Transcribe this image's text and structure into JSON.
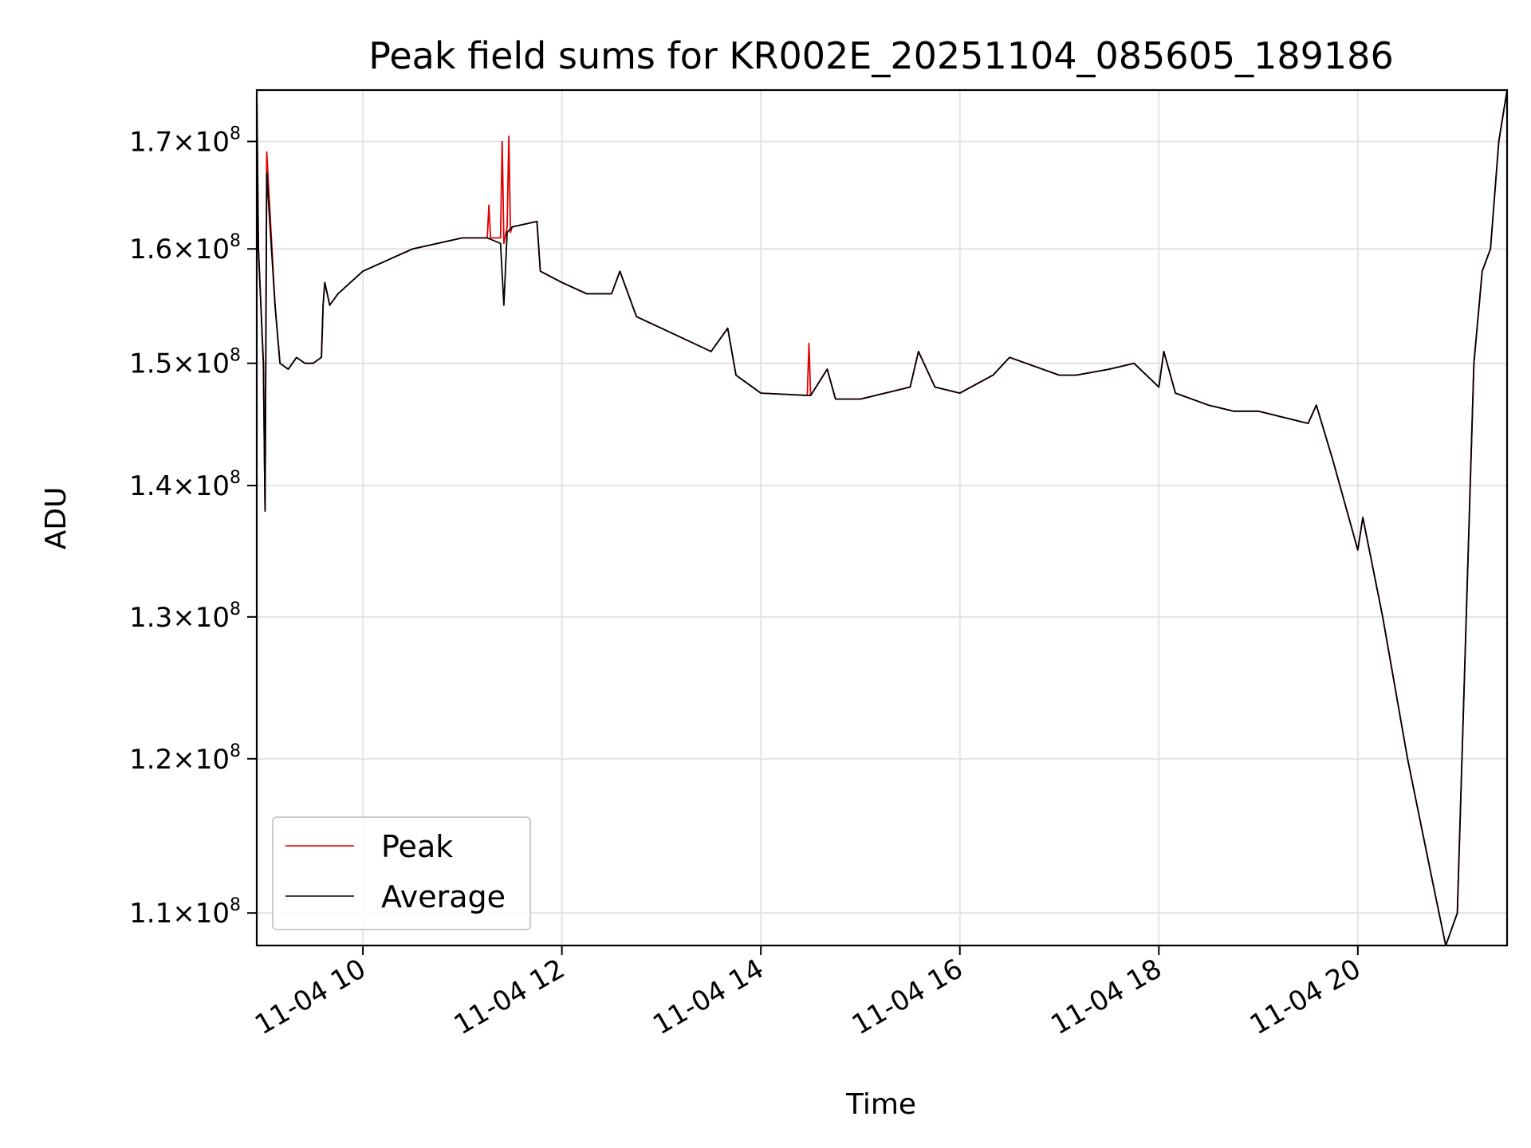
{
  "chart_data": {
    "type": "line",
    "title": "Peak field sums for KR002E_20251104_085605_189186",
    "xlabel": "Time",
    "ylabel": "ADU",
    "yscale": "log",
    "grid": true,
    "legend_position": "lower-left",
    "xlim": [
      "2025-11-04 08:56",
      "2025-11-04 21:30"
    ],
    "ylim": [
      108000000,
      175000000
    ],
    "x_ticks": [
      {
        "value": "2025-11-04 10:00",
        "label": "11-04 10"
      },
      {
        "value": "2025-11-04 12:00",
        "label": "11-04 12"
      },
      {
        "value": "2025-11-04 14:00",
        "label": "11-04 14"
      },
      {
        "value": "2025-11-04 16:00",
        "label": "11-04 16"
      },
      {
        "value": "2025-11-04 18:00",
        "label": "11-04 18"
      },
      {
        "value": "2025-11-04 20:00",
        "label": "11-04 20"
      }
    ],
    "y_ticks": [
      {
        "value": 110000000,
        "mantissa": "1.1",
        "exp": "8"
      },
      {
        "value": 120000000,
        "mantissa": "1.2",
        "exp": "8"
      },
      {
        "value": 130000000,
        "mantissa": "1.3",
        "exp": "8"
      },
      {
        "value": 140000000,
        "mantissa": "1.4",
        "exp": "8"
      },
      {
        "value": 150000000,
        "mantissa": "1.5",
        "exp": "8"
      },
      {
        "value": 160000000,
        "mantissa": "1.6",
        "exp": "8"
      },
      {
        "value": 170000000,
        "mantissa": "1.7",
        "exp": "8"
      }
    ],
    "series": [
      {
        "name": "Average",
        "color": "#000000",
        "x": [
          "2025-11-04 08:56",
          "2025-11-04 08:57",
          "2025-11-04 09:00",
          "2025-11-04 09:01",
          "2025-11-04 09:02",
          "2025-11-04 09:07",
          "2025-11-04 09:10",
          "2025-11-04 09:15",
          "2025-11-04 09:20",
          "2025-11-04 09:25",
          "2025-11-04 09:30",
          "2025-11-04 09:35",
          "2025-11-04 09:36",
          "2025-11-04 09:37",
          "2025-11-04 09:40",
          "2025-11-04 09:45",
          "2025-11-04 10:00",
          "2025-11-04 10:15",
          "2025-11-04 10:30",
          "2025-11-04 11:00",
          "2025-11-04 11:15",
          "2025-11-04 11:23",
          "2025-11-04 11:25",
          "2025-11-04 11:27",
          "2025-11-04 11:30",
          "2025-11-04 11:45",
          "2025-11-04 11:47",
          "2025-11-04 12:00",
          "2025-11-04 12:15",
          "2025-11-04 12:30",
          "2025-11-04 12:35",
          "2025-11-04 12:45",
          "2025-11-04 13:00",
          "2025-11-04 13:30",
          "2025-11-04 13:40",
          "2025-11-04 13:45",
          "2025-11-04 14:00",
          "2025-11-04 14:30",
          "2025-11-04 14:40",
          "2025-11-04 14:45",
          "2025-11-04 15:00",
          "2025-11-04 15:30",
          "2025-11-04 15:35",
          "2025-11-04 15:45",
          "2025-11-04 16:00",
          "2025-11-04 16:20",
          "2025-11-04 16:30",
          "2025-11-04 17:00",
          "2025-11-04 17:10",
          "2025-11-04 17:30",
          "2025-11-04 17:45",
          "2025-11-04 18:00",
          "2025-11-04 18:03",
          "2025-11-04 18:10",
          "2025-11-04 18:30",
          "2025-11-04 18:45",
          "2025-11-04 19:00",
          "2025-11-04 19:30",
          "2025-11-04 19:35",
          "2025-11-04 19:45",
          "2025-11-04 20:00",
          "2025-11-04 20:03",
          "2025-11-04 20:15",
          "2025-11-04 20:30",
          "2025-11-04 20:45",
          "2025-11-04 20:53",
          "2025-11-04 21:00",
          "2025-11-04 21:10",
          "2025-11-04 21:15",
          "2025-11-04 21:20",
          "2025-11-04 21:25",
          "2025-11-04 21:30"
        ],
        "values": [
          175000000,
          160000000,
          150000000,
          138000000,
          167000000,
          155000000,
          150000000,
          149500000,
          150500000,
          150000000,
          150000000,
          150500000,
          155000000,
          157000000,
          155000000,
          156000000,
          158000000,
          159000000,
          160000000,
          161000000,
          161000000,
          160500000,
          155000000,
          161500000,
          162000000,
          162500000,
          158000000,
          157000000,
          156000000,
          156000000,
          158000000,
          154000000,
          153000000,
          151000000,
          153000000,
          149000000,
          147500000,
          147300000,
          149500000,
          147000000,
          147000000,
          148000000,
          151000000,
          148000000,
          147500000,
          149000000,
          150500000,
          149000000,
          149000000,
          149500000,
          150000000,
          148000000,
          151000000,
          147500000,
          146500000,
          146000000,
          146000000,
          145000000,
          146500000,
          142000000,
          135000000,
          137500000,
          130000000,
          120000000,
          112000000,
          108000000,
          110000000,
          150000000,
          158000000,
          160000000,
          170000000,
          175000000
        ]
      },
      {
        "name": "Peak",
        "color": "#e00000",
        "x": [
          "2025-11-04 08:56",
          "2025-11-04 08:57",
          "2025-11-04 09:00",
          "2025-11-04 09:01",
          "2025-11-04 09:02",
          "2025-11-04 09:07",
          "2025-11-04 09:10",
          "2025-11-04 09:15",
          "2025-11-04 09:20",
          "2025-11-04 09:25",
          "2025-11-04 09:30",
          "2025-11-04 09:35",
          "2025-11-04 09:36",
          "2025-11-04 09:37",
          "2025-11-04 09:40",
          "2025-11-04 09:45",
          "2025-11-04 10:00",
          "2025-11-04 10:15",
          "2025-11-04 10:30",
          "2025-11-04 11:00",
          "2025-11-04 11:15",
          "2025-11-04 11:16",
          "2025-11-04 11:17",
          "2025-11-04 11:23",
          "2025-11-04 11:24",
          "2025-11-04 11:25",
          "2025-11-04 11:27",
          "2025-11-04 11:28",
          "2025-11-04 11:29",
          "2025-11-04 11:30",
          "2025-11-04 11:45",
          "2025-11-04 11:47",
          "2025-11-04 12:00",
          "2025-11-04 12:15",
          "2025-11-04 12:30",
          "2025-11-04 12:35",
          "2025-11-04 12:45",
          "2025-11-04 13:00",
          "2025-11-04 13:30",
          "2025-11-04 13:40",
          "2025-11-04 13:45",
          "2025-11-04 14:00",
          "2025-11-04 14:28",
          "2025-11-04 14:29",
          "2025-11-04 14:30",
          "2025-11-04 14:40",
          "2025-11-04 14:45",
          "2025-11-04 15:00",
          "2025-11-04 15:30",
          "2025-11-04 15:35",
          "2025-11-04 15:45",
          "2025-11-04 16:00",
          "2025-11-04 16:20",
          "2025-11-04 16:30",
          "2025-11-04 17:00",
          "2025-11-04 17:10",
          "2025-11-04 17:30",
          "2025-11-04 17:45",
          "2025-11-04 18:00",
          "2025-11-04 18:03",
          "2025-11-04 18:10",
          "2025-11-04 18:30",
          "2025-11-04 18:45",
          "2025-11-04 19:00",
          "2025-11-04 19:30",
          "2025-11-04 19:35",
          "2025-11-04 19:45",
          "2025-11-04 20:00",
          "2025-11-04 20:03",
          "2025-11-04 20:15",
          "2025-11-04 20:30",
          "2025-11-04 20:45",
          "2025-11-04 20:53",
          "2025-11-04 21:00",
          "2025-11-04 21:10",
          "2025-11-04 21:15",
          "2025-11-04 21:20",
          "2025-11-04 21:25",
          "2025-11-04 21:30"
        ],
        "values": [
          175000000,
          160000000,
          150000000,
          138000000,
          169000000,
          155000000,
          150000000,
          149500000,
          150500000,
          150000000,
          150000000,
          150500000,
          155000000,
          157000000,
          155000000,
          156000000,
          158000000,
          159000000,
          160000000,
          161000000,
          161000000,
          164000000,
          161000000,
          161000000,
          170000000,
          160500000,
          162000000,
          170500000,
          161500000,
          162000000,
          162500000,
          158000000,
          157000000,
          156000000,
          156000000,
          158000000,
          154000000,
          153000000,
          151000000,
          153000000,
          149000000,
          147500000,
          147300000,
          151700000,
          147300000,
          149500000,
          147000000,
          147000000,
          148000000,
          151000000,
          148000000,
          147500000,
          149000000,
          150500000,
          149000000,
          149000000,
          149500000,
          150000000,
          148000000,
          151000000,
          147500000,
          146500000,
          146000000,
          146000000,
          145000000,
          146500000,
          142000000,
          135000000,
          137500000,
          130000000,
          120000000,
          112000000,
          108000000,
          110000000,
          150000000,
          158000000,
          160000000,
          170000000,
          175000000
        ]
      }
    ]
  }
}
